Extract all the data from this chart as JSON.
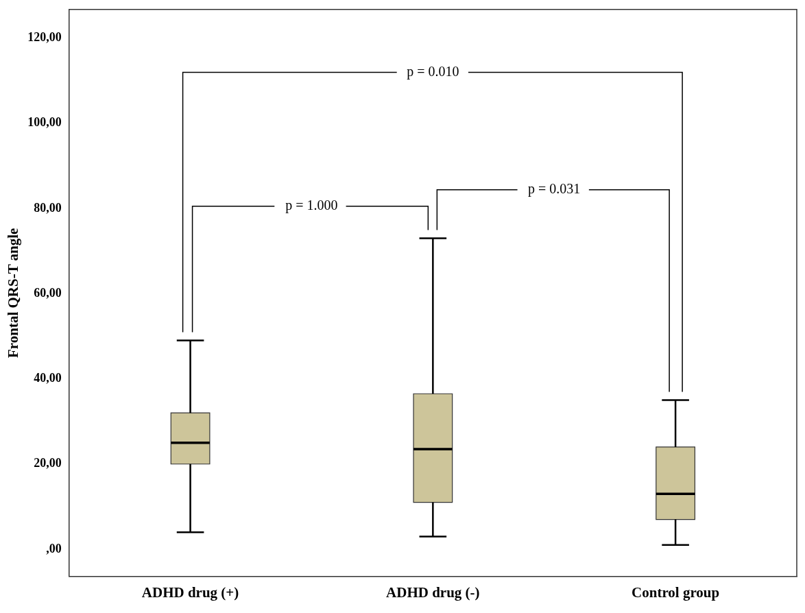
{
  "chart_data": {
    "type": "box",
    "ylabel": "Frontal QRS-T angle",
    "categories": [
      "ADHD drug (+)",
      "ADHD drug (-)",
      "Control group"
    ],
    "color": "#cdc59a",
    "boxes": [
      {
        "low": 4,
        "q1": 20,
        "median": 25,
        "q3": 32,
        "high": 49
      },
      {
        "low": 3,
        "q1": 11,
        "median": 23.5,
        "q3": 36.5,
        "high": 73
      },
      {
        "low": 1,
        "q1": 7,
        "median": 13,
        "q3": 24,
        "high": 35
      }
    ],
    "ylim": [
      -6.4,
      126.7
    ],
    "yticks": [
      {
        "value": 0,
        "label": ",00"
      },
      {
        "value": 20,
        "label": "20,00"
      },
      {
        "value": 40,
        "label": "40,00"
      },
      {
        "value": 60,
        "label": "60,00"
      },
      {
        "value": 80,
        "label": "80,00"
      },
      {
        "value": 100,
        "label": "100,00"
      },
      {
        "value": 120,
        "label": "120,00"
      }
    ],
    "annotations": [
      "p = 0.010",
      "p = 1.000",
      "p = 0.031"
    ],
    "grid": false,
    "legend": false
  }
}
